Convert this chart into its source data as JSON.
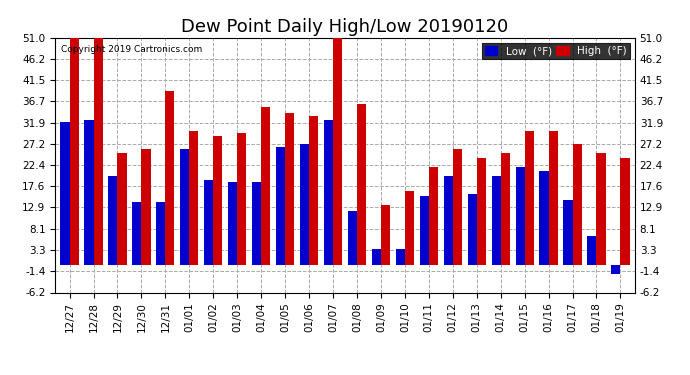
{
  "title": "Dew Point Daily High/Low 20190120",
  "copyright": "Copyright 2019 Cartronics.com",
  "dates": [
    "12/27",
    "12/28",
    "12/29",
    "12/30",
    "12/31",
    "01/01",
    "01/02",
    "01/03",
    "01/04",
    "01/05",
    "01/06",
    "01/07",
    "01/08",
    "01/09",
    "01/10",
    "01/11",
    "01/12",
    "01/13",
    "01/14",
    "01/15",
    "01/16",
    "01/17",
    "01/18",
    "01/19"
  ],
  "high": [
    51.0,
    51.0,
    25.0,
    26.0,
    39.0,
    30.0,
    29.0,
    29.5,
    35.5,
    34.0,
    33.5,
    51.0,
    36.0,
    13.5,
    16.5,
    22.0,
    26.0,
    24.0,
    25.0,
    30.0,
    30.0,
    27.0,
    25.0,
    24.0
  ],
  "low": [
    32.0,
    32.5,
    20.0,
    14.0,
    14.0,
    26.0,
    19.0,
    18.5,
    18.5,
    26.5,
    27.0,
    32.5,
    12.0,
    3.5,
    3.5,
    15.5,
    20.0,
    16.0,
    20.0,
    22.0,
    21.0,
    14.5,
    6.5,
    -2.0
  ],
  "ylim_min": -6.2,
  "ylim_max": 51.0,
  "yticks": [
    -6.2,
    -1.4,
    3.3,
    8.1,
    12.9,
    17.6,
    22.4,
    27.2,
    31.9,
    36.7,
    41.5,
    46.2,
    51.0
  ],
  "low_color": "#0000cc",
  "high_color": "#cc0000",
  "bg_color": "#ffffff",
  "grid_color": "#aaaaaa",
  "title_fontsize": 13,
  "tick_fontsize": 7.5,
  "legend_low_label": "Low  (°F)",
  "legend_high_label": "High  (°F)"
}
